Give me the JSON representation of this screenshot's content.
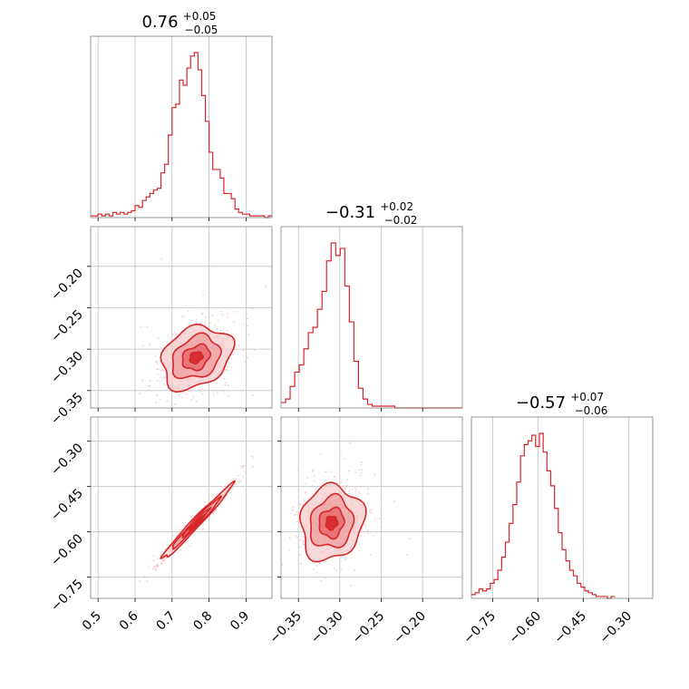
{
  "colors": {
    "series": "#d62728",
    "fill_light": "#f6c6c8",
    "fill_mid": "#ee9597",
    "fill_dark": "#e3575b",
    "grid": "#c0c0c0",
    "frame": "#808080"
  },
  "chart_data": [
    {
      "type": "histogram",
      "panel": "diag-1",
      "title": {
        "median": "0.76",
        "plus": "+0.05",
        "minus": "−0.05"
      },
      "xlim": [
        0.48,
        0.97
      ],
      "xticks": [
        0.5,
        0.6,
        0.7,
        0.8,
        0.9
      ],
      "xticklabels": [
        "0.5",
        "0.6",
        "0.7",
        "0.8",
        "0.9"
      ],
      "bins": {
        "start": 0.48,
        "width": 0.01
      },
      "counts": [
        1,
        1,
        2,
        1,
        2,
        1,
        3,
        2,
        3,
        2,
        3,
        4,
        7,
        6,
        10,
        12,
        14,
        16,
        17,
        26,
        31,
        48,
        64,
        66,
        80,
        77,
        87,
        94,
        96,
        86,
        71,
        56,
        38,
        28,
        28,
        23,
        14,
        14,
        11,
        5,
        3,
        2,
        2,
        1,
        1,
        1,
        1,
        0,
        1
      ]
    },
    {
      "type": "histogram",
      "panel": "diag-2",
      "title": {
        "median": "−0.31",
        "plus": "+0.02",
        "minus": "−0.02"
      },
      "xlim": [
        -0.371,
        -0.152
      ],
      "xticks": [
        -0.35,
        -0.3,
        -0.25,
        -0.2
      ],
      "xticklabels": [
        "−0.35",
        "−0.30",
        "−0.25",
        "−0.20"
      ],
      "bins": {
        "start": -0.371,
        "width": 0.0055
      },
      "counts": [
        3,
        5,
        12,
        20,
        24,
        33,
        42,
        45,
        55,
        65,
        82,
        92,
        85,
        89,
        68,
        48,
        26,
        11,
        5,
        2,
        1,
        1,
        1,
        1,
        1,
        0,
        0,
        0,
        0,
        0,
        0,
        0,
        0,
        0,
        0,
        0,
        0,
        0,
        0,
        0
      ]
    },
    {
      "type": "histogram",
      "panel": "diag-3",
      "title": {
        "median": "−0.57",
        "plus": "+0.07",
        "minus": "−0.06"
      },
      "xlim": [
        -0.82,
        -0.22
      ],
      "xticks": [
        -0.75,
        -0.6,
        -0.45,
        -0.3
      ],
      "xticklabels": [
        "−0.75",
        "−0.60",
        "−0.45",
        "−0.30"
      ],
      "bins": {
        "start": -0.82,
        "width": 0.0125
      },
      "counts": [
        2,
        3,
        5,
        4,
        5,
        8,
        10,
        15,
        22,
        30,
        40,
        50,
        62,
        76,
        82,
        84,
        87,
        81,
        88,
        78,
        68,
        60,
        48,
        35,
        26,
        20,
        15,
        12,
        8,
        6,
        4,
        3,
        2,
        1,
        1,
        1,
        0,
        1
      ]
    },
    {
      "type": "scatter",
      "panel": "pair-2-1",
      "description_of_axes": "x = parameter 1, y = parameter 2",
      "xlim": [
        0.48,
        0.97
      ],
      "ylim": [
        -0.371,
        -0.152
      ],
      "yticks": [
        -0.2,
        -0.25,
        -0.3,
        -0.35
      ],
      "yticklabels": [
        "−0.20",
        "−0.25",
        "−0.30",
        "−0.35"
      ],
      "center": [
        0.765,
        -0.31
      ],
      "spread": [
        0.05,
        0.02
      ],
      "correlation": 0.25,
      "contour_scales": [
        1.9,
        1.3,
        0.75,
        0.35
      ]
    },
    {
      "type": "scatter",
      "panel": "pair-3-1",
      "description_of_axes": "x = parameter 1, y = parameter 3",
      "xlim": [
        0.48,
        0.97
      ],
      "ylim": [
        -0.82,
        -0.22
      ],
      "yticks": [
        -0.3,
        -0.45,
        -0.6,
        -0.75
      ],
      "yticklabels": [
        "−0.30",
        "−0.45",
        "−0.60",
        "−0.75"
      ],
      "center": [
        0.765,
        -0.57
      ],
      "spread": [
        0.05,
        0.065
      ],
      "correlation": 0.985,
      "contour_scales": [
        1.9,
        1.3,
        0.75,
        0.35
      ]
    },
    {
      "type": "scatter",
      "panel": "pair-3-2",
      "description_of_axes": "x = parameter 2, y = parameter 3",
      "xlim": [
        -0.371,
        -0.152
      ],
      "ylim": [
        -0.82,
        -0.22
      ],
      "center": [
        -0.31,
        -0.57
      ],
      "spread": [
        0.02,
        0.065
      ],
      "correlation": 0.1,
      "contour_scales": [
        1.9,
        1.3,
        0.75,
        0.35
      ]
    }
  ]
}
